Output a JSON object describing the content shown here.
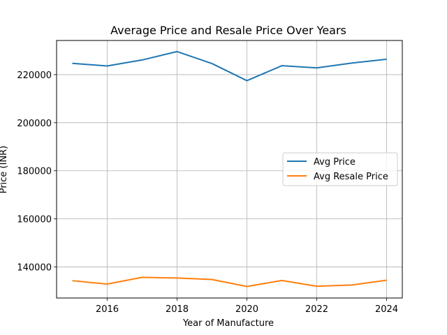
{
  "chart_data": {
    "type": "line",
    "title": "Average Price and Resale Price Over Years",
    "xlabel": "Year of Manufacture",
    "ylabel": "Price (INR)",
    "x": [
      2015,
      2016,
      2017,
      2018,
      2019,
      2020,
      2021,
      2022,
      2023,
      2024
    ],
    "xlim": [
      2014.55,
      2024.45
    ],
    "ylim": [
      127100,
      234200
    ],
    "xticks": [
      2016,
      2018,
      2020,
      2022,
      2024
    ],
    "yticks": [
      140000,
      160000,
      180000,
      200000,
      220000
    ],
    "grid": true,
    "legend_position": "center-right",
    "series": [
      {
        "name": "Avg Price",
        "color": "#1f77b4",
        "values": [
          224700,
          223600,
          226100,
          229600,
          224600,
          217500,
          223700,
          222800,
          224800,
          226400
        ]
      },
      {
        "name": "Avg Resale Price",
        "color": "#ff7f0e",
        "values": [
          134300,
          132900,
          135700,
          135400,
          134800,
          131900,
          134400,
          132000,
          132500,
          134500
        ]
      }
    ]
  }
}
